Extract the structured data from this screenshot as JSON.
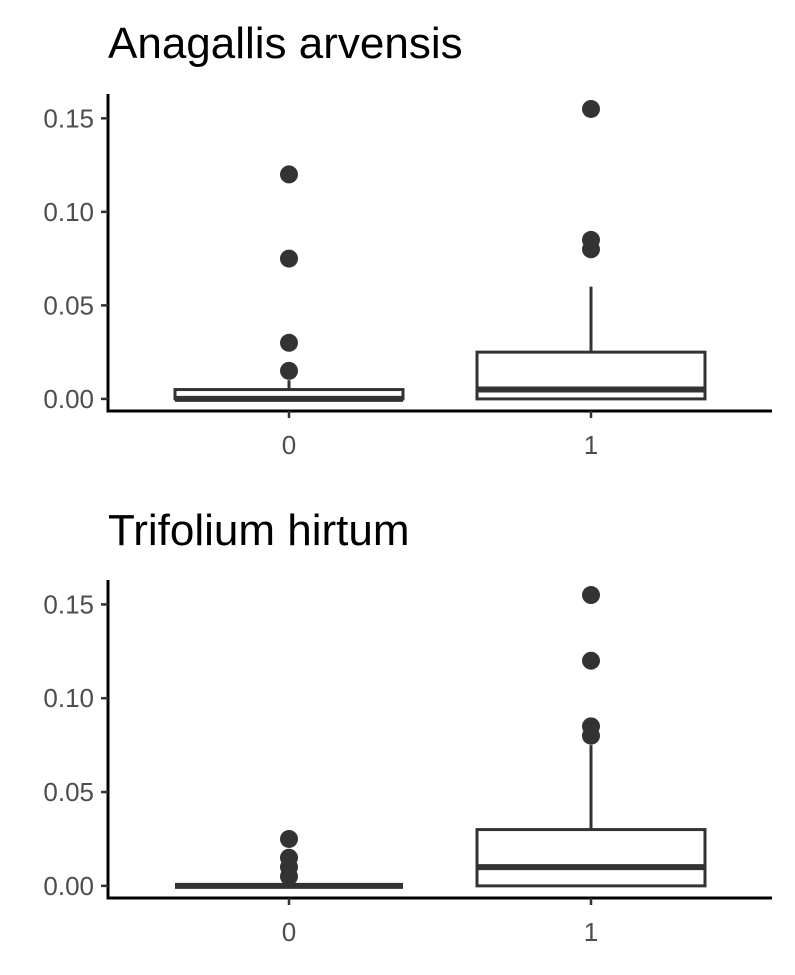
{
  "chart_data": [
    {
      "type": "box",
      "title": "Anagallis arvensis",
      "xlabel": "",
      "ylabel": "",
      "categories": [
        "0",
        "1"
      ],
      "ylim": [
        -0.007,
        0.163
      ],
      "yticks": [
        0.0,
        0.05,
        0.1,
        0.15
      ],
      "ytick_labels": [
        "0.00",
        "0.05",
        "0.10",
        "0.15"
      ],
      "grid": false,
      "boxes": [
        {
          "category": "0",
          "q1": 0.0,
          "median": 0.0,
          "q3": 0.005,
          "whisker_low": 0.0,
          "whisker_high": 0.01,
          "outliers": [
            0.015,
            0.03,
            0.075,
            0.12
          ]
        },
        {
          "category": "1",
          "q1": 0.0,
          "median": 0.005,
          "q3": 0.025,
          "whisker_low": 0.0,
          "whisker_high": 0.06,
          "outliers": [
            0.08,
            0.085,
            0.155
          ]
        }
      ]
    },
    {
      "type": "box",
      "title": "Trifolium hirtum",
      "xlabel": "",
      "ylabel": "",
      "categories": [
        "0",
        "1"
      ],
      "ylim": [
        -0.007,
        0.163
      ],
      "yticks": [
        0.0,
        0.05,
        0.1,
        0.15
      ],
      "ytick_labels": [
        "0.00",
        "0.05",
        "0.10",
        "0.15"
      ],
      "grid": false,
      "boxes": [
        {
          "category": "0",
          "q1": 0.0,
          "median": 0.0,
          "q3": 0.0,
          "whisker_low": 0.0,
          "whisker_high": 0.0,
          "outliers": [
            0.005,
            0.01,
            0.015,
            0.025
          ]
        },
        {
          "category": "1",
          "q1": 0.0,
          "median": 0.01,
          "q3": 0.03,
          "whisker_low": 0.0,
          "whisker_high": 0.075,
          "outliers": [
            0.08,
            0.085,
            0.12,
            0.155
          ]
        }
      ]
    }
  ]
}
